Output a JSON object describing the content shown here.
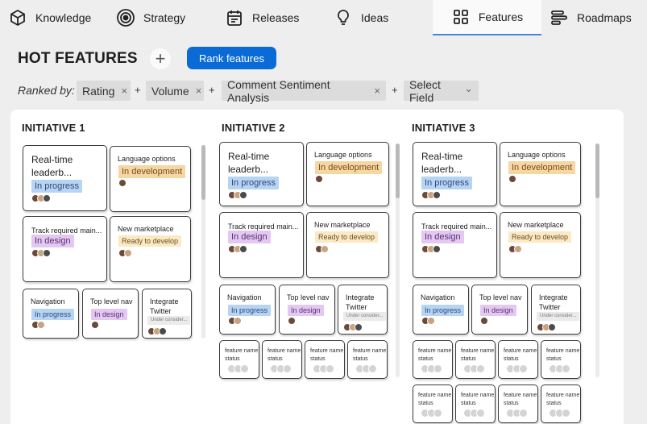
{
  "nav": {
    "items": [
      {
        "label": "Knowledge",
        "icon": "cube-icon"
      },
      {
        "label": "Strategy",
        "icon": "target-icon"
      },
      {
        "label": "Releases",
        "icon": "calendar-icon"
      },
      {
        "label": "Ideas",
        "icon": "lightbulb-icon"
      },
      {
        "label": "Features",
        "icon": "grid-icon",
        "active": true
      },
      {
        "label": "Roadmaps",
        "icon": "roadmap-icon"
      }
    ]
  },
  "header": {
    "title": "HOT FEATURES",
    "add_symbol": "+",
    "rank_button": "Rank features"
  },
  "ranked_by": {
    "label": "Ranked by:",
    "chips": [
      "Rating",
      "Volume",
      "Comment Sentiment Analysis"
    ],
    "select": "Select Field",
    "remove_symbol": "×",
    "plus_symbol": "+",
    "chevron": "⌄"
  },
  "colors": {
    "accent": "#0a6bd6",
    "in_progress": "#b8d4f3",
    "in_development": "#f6d6a5",
    "in_design": "#e3c9f0",
    "ready": "#fbe9c5"
  },
  "initiatives": [
    {
      "title": "INITIATIVE 1",
      "cards": [
        {
          "title": "Real-time leaderb...",
          "status": "In progress"
        },
        {
          "title": "Language options",
          "status": "In development"
        },
        {
          "title": "Track required main...",
          "status": "In design"
        },
        {
          "title": "New marketplace",
          "status": "Ready to develop"
        },
        {
          "title": "Navigation",
          "status": "In progress"
        },
        {
          "title": "Top level nav",
          "status": "In design"
        },
        {
          "title": "Integrate Twitter",
          "status": "Under consider..."
        }
      ]
    },
    {
      "title": "INITIATIVE 2",
      "cards": [
        {
          "title": "Real-time leaderb...",
          "status": "In progress"
        },
        {
          "title": "Language options",
          "status": "In development"
        },
        {
          "title": "Track required main...",
          "status": "In design"
        },
        {
          "title": "New marketplace",
          "status": "Ready to develop"
        },
        {
          "title": "Navigation",
          "status": "In progress"
        },
        {
          "title": "Top level nav",
          "status": "In design"
        },
        {
          "title": "Integrate Twitter",
          "status": "Under consider..."
        }
      ],
      "placeholders": [
        {
          "title": "feature name",
          "status": "status"
        },
        {
          "title": "feature name",
          "status": "status"
        },
        {
          "title": "feature name",
          "status": "status"
        },
        {
          "title": "feature name",
          "status": "status"
        }
      ]
    },
    {
      "title": "INITIATIVE 3",
      "cards": [
        {
          "title": "Real-time leaderb...",
          "status": "In progress"
        },
        {
          "title": "Language options",
          "status": "In development"
        },
        {
          "title": "Track required main...",
          "status": "In design"
        },
        {
          "title": "New marketplace",
          "status": "Ready to develop"
        },
        {
          "title": "Navigation",
          "status": "In progress"
        },
        {
          "title": "Top level nav",
          "status": "In design"
        },
        {
          "title": "Integrate Twitter",
          "status": "Under consider..."
        }
      ],
      "placeholders": [
        {
          "title": "feature name",
          "status": "status"
        },
        {
          "title": "feature name",
          "status": "status"
        },
        {
          "title": "feature name",
          "status": "status"
        },
        {
          "title": "feature name",
          "status": "status"
        },
        {
          "title": "feature name",
          "status": "status"
        },
        {
          "title": "feature name",
          "status": "status"
        },
        {
          "title": "feature name",
          "status": "status"
        },
        {
          "title": "feature name",
          "status": "status"
        }
      ]
    }
  ]
}
